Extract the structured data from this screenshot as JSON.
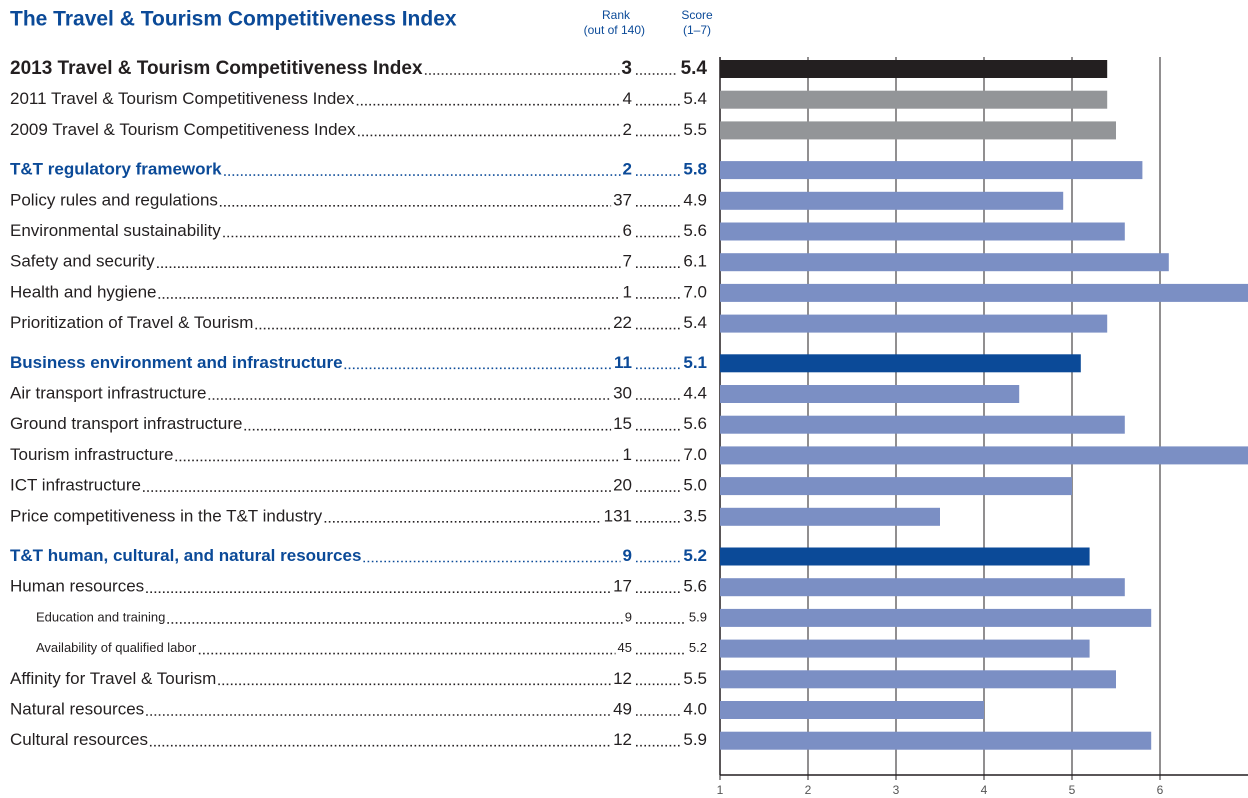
{
  "chart_data": {
    "type": "bar",
    "orientation": "horizontal",
    "title": "The Travel & Tourism Competitiveness Index",
    "rank_header": [
      "Rank",
      "(out of 140)"
    ],
    "score_header": [
      "Score",
      "(1–7)"
    ],
    "categories": [
      "2013 Travel & Tourism Competitiveness Index",
      "2011 Travel & Tourism Competitiveness Index",
      "2009 Travel & Tourism Competitiveness Index",
      "T&T regulatory framework",
      "Policy rules and regulations",
      "Environmental sustainability",
      "Safety and security",
      "Health and hygiene",
      "Prioritization of Travel & Tourism",
      "Business environment and infrastructure",
      "Air transport infrastructure",
      "Ground transport infrastructure",
      "Tourism infrastructure",
      "ICT infrastructure",
      "Price competitiveness in the T&T industry",
      "T&T human, cultural, and natural resources",
      "Human resources",
      "Education and training",
      "Availability of qualified labor",
      "Affinity for Travel & Tourism",
      "Natural resources",
      "Cultural resources"
    ],
    "ranks": [
      3,
      4,
      2,
      2,
      37,
      6,
      7,
      1,
      22,
      11,
      30,
      15,
      1,
      20,
      131,
      9,
      17,
      9,
      45,
      12,
      49,
      12
    ],
    "values": [
      5.4,
      5.4,
      5.5,
      5.8,
      4.9,
      5.6,
      6.1,
      7.0,
      5.4,
      5.1,
      4.4,
      5.6,
      7.0,
      5.0,
      3.5,
      5.2,
      5.6,
      5.9,
      5.2,
      5.5,
      4.0,
      5.9
    ],
    "value_labels": [
      "5.4",
      "5.4",
      "5.5",
      "5.8",
      "4.9",
      "5.6",
      "6.1",
      "7.0",
      "5.4",
      "5.1",
      "4.4",
      "5.6",
      "7.0",
      "5.0",
      "3.5",
      "5.2",
      "5.6",
      "5.9",
      "5.2",
      "5.5",
      "4.0",
      "5.9"
    ],
    "colors": [
      "#231f20",
      "#939598",
      "#939598",
      "#7b8fc4",
      "#7b8fc4",
      "#7b8fc4",
      "#7b8fc4",
      "#7b8fc4",
      "#7b8fc4",
      "#0b4a98",
      "#7b8fc4",
      "#7b8fc4",
      "#7b8fc4",
      "#7b8fc4",
      "#7b8fc4",
      "#0b4a98",
      "#7b8fc4",
      "#7b8fc4",
      "#7b8fc4",
      "#7b8fc4",
      "#7b8fc4",
      "#7b8fc4"
    ],
    "xlim": [
      1,
      7
    ],
    "xticks": [
      1,
      2,
      3,
      4,
      5,
      6
    ],
    "grid": true
  }
}
